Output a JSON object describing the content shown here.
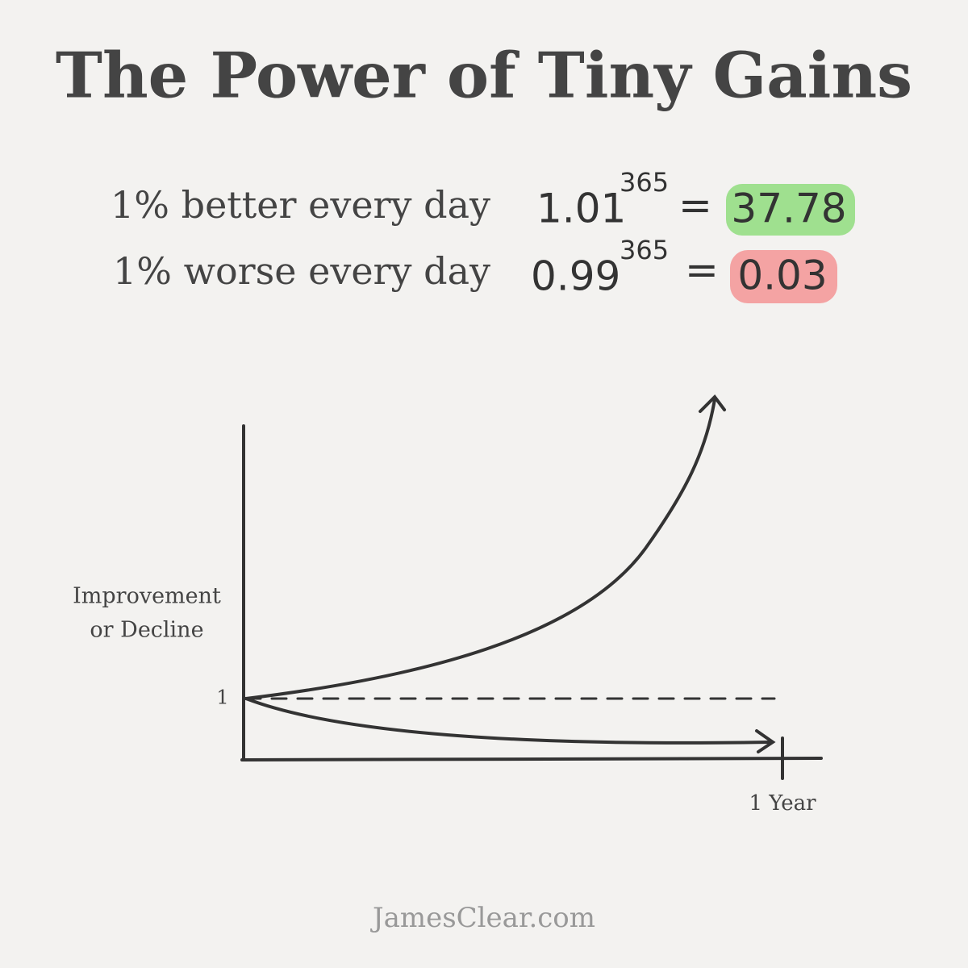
{
  "title": "The Power of Tiny Gains",
  "equations": [
    {
      "label": "1% better every day",
      "base": "1.01",
      "exponent": "365",
      "operator": "=",
      "result": "37.78"
    },
    {
      "label": "1% worse every day",
      "base": "0.99",
      "exponent": "365",
      "operator": "=",
      "result": "0.03"
    }
  ],
  "graph": {
    "y_label_lines": [
      "Improvement",
      "or Decline"
    ],
    "y_tick": "1",
    "x_tick": "1 Year"
  },
  "footer": "JamesClear.com"
}
